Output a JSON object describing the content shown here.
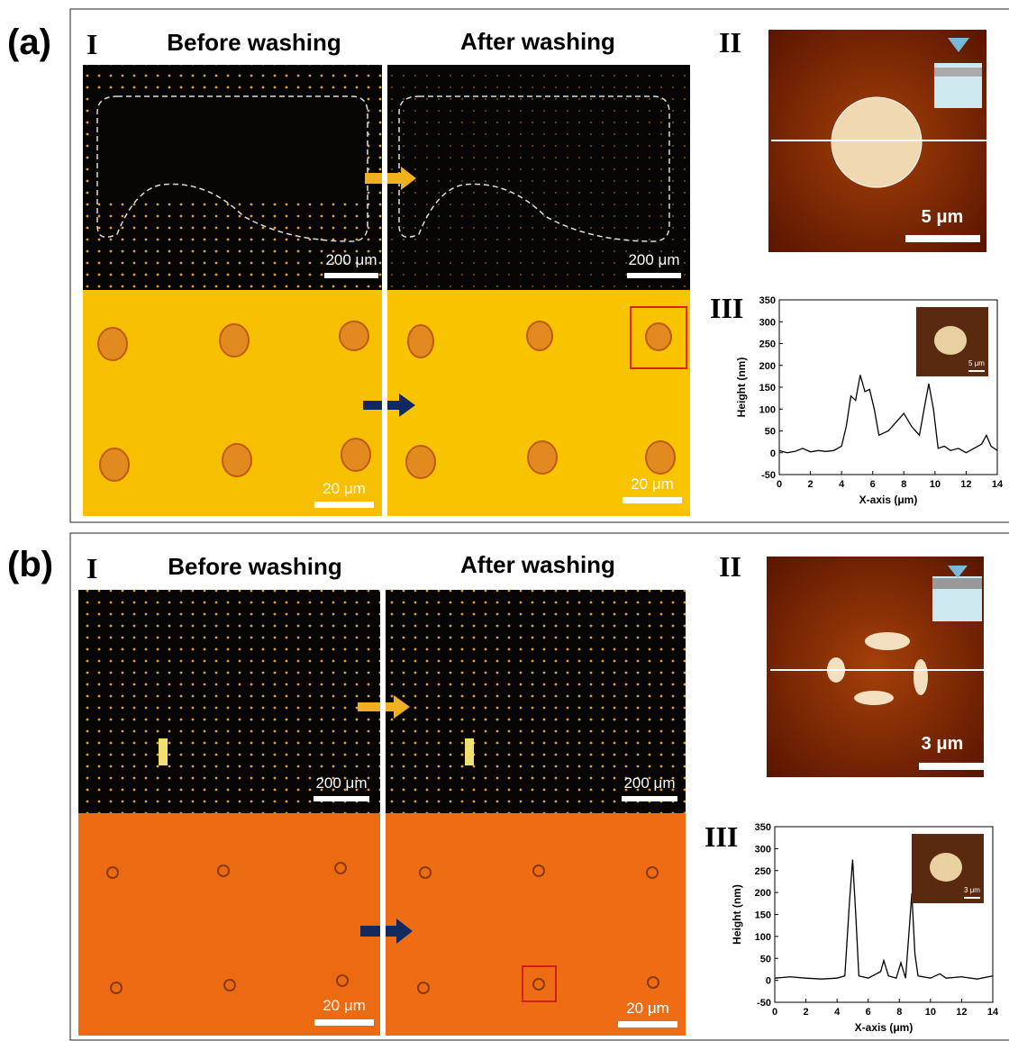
{
  "figure": {
    "panels": [
      {
        "label": "(a)",
        "part1": "I",
        "before": "Before washing",
        "after": "After washing",
        "part2": "II",
        "part3": "III",
        "scale_top_before": "200 μm",
        "scale_top_after": "200 μm",
        "scale_bottom_before": "20 μm",
        "scale_bottom_after": "20 μm",
        "afm_scale": "5 μm"
      },
      {
        "label": "(b)",
        "part1": "I",
        "before": "Before washing",
        "after": "After washing",
        "part2": "II",
        "part3": "III",
        "scale_top_before": "200 μm",
        "scale_top_after": "200 μm",
        "scale_bottom_before": "20 μm",
        "scale_bottom_after": "20 μm",
        "afm_scale": "3 μm"
      }
    ]
  },
  "chart_data": [
    {
      "type": "line",
      "xlabel": "X-axis (μm)",
      "ylabel": "Height (nm)",
      "inset_scale": "5 μm",
      "x": [
        0,
        0.5,
        1,
        1.5,
        2,
        2.5,
        3,
        3.5,
        4,
        4.3,
        4.6,
        4.9,
        5.2,
        5.5,
        5.8,
        6.1,
        6.4,
        7,
        7.5,
        8,
        8.5,
        9,
        9.3,
        9.6,
        9.9,
        10.2,
        10.6,
        11,
        11.5,
        12,
        12.5,
        13,
        13.3,
        13.6,
        14
      ],
      "series": [
        {
          "color": "#000000",
          "values": [
            5,
            0,
            3,
            10,
            2,
            5,
            3,
            5,
            15,
            60,
            130,
            120,
            178,
            140,
            145,
            100,
            40,
            50,
            70,
            90,
            60,
            40,
            100,
            158,
            100,
            10,
            15,
            5,
            10,
            0,
            10,
            20,
            40,
            15,
            5
          ]
        }
      ],
      "xlim": [
        0,
        14
      ],
      "ylim": [
        -50,
        350
      ],
      "xticks": [
        0,
        2,
        4,
        6,
        8,
        10,
        12,
        14
      ],
      "yticks": [
        -50,
        0,
        50,
        100,
        150,
        200,
        250,
        300,
        350
      ]
    },
    {
      "type": "line",
      "xlabel": "X-axis (μm)",
      "ylabel": "Height (nm)",
      "inset_scale": "3 μm",
      "x": [
        0,
        1,
        2,
        3,
        4,
        4.5,
        4.8,
        5,
        5.2,
        5.4,
        6,
        6.8,
        7,
        7.3,
        7.8,
        8.1,
        8.4,
        8.6,
        8.8,
        9,
        9.2,
        10,
        10.6,
        11,
        12,
        13,
        14
      ],
      "series": [
        {
          "color": "#000000",
          "values": [
            5,
            8,
            5,
            3,
            5,
            10,
            180,
            275,
            150,
            10,
            5,
            20,
            45,
            10,
            5,
            40,
            5,
            100,
            198,
            60,
            10,
            5,
            15,
            5,
            8,
            3,
            10
          ]
        }
      ],
      "xlim": [
        0,
        14
      ],
      "ylim": [
        -50,
        350
      ],
      "xticks": [
        0,
        2,
        4,
        6,
        8,
        10,
        12,
        14
      ],
      "yticks": [
        -50,
        0,
        50,
        100,
        150,
        200,
        250,
        300,
        350
      ]
    }
  ]
}
